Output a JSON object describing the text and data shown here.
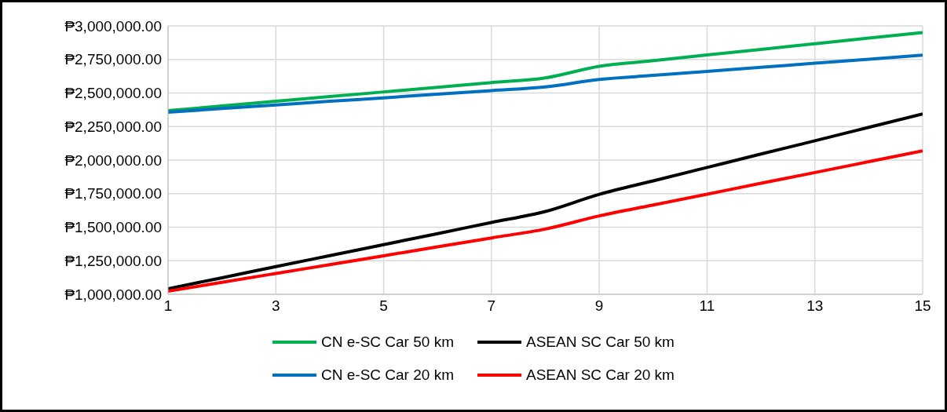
{
  "chart_data": {
    "type": "line",
    "x": [
      1,
      2,
      3,
      4,
      5,
      6,
      7,
      8,
      9,
      10,
      11,
      12,
      13,
      14,
      15
    ],
    "series": [
      {
        "name": "CN e-SC Car 50 km",
        "color": "#00b050",
        "values": [
          2368000,
          2403000,
          2438000,
          2473000,
          2508000,
          2543000,
          2578000,
          2613000,
          2699000,
          2741000,
          2783000,
          2825000,
          2867000,
          2909000,
          2951000
        ]
      },
      {
        "name": "ASEAN SC Car 50 km",
        "color": "#000000",
        "values": [
          1041000,
          1123000,
          1206000,
          1288000,
          1370000,
          1452000,
          1535000,
          1617000,
          1745000,
          1845000,
          1945000,
          2045000,
          2144000,
          2244000,
          2344000
        ]
      },
      {
        "name": "CN e-SC Car 20 km",
        "color": "#0070c0",
        "values": [
          2357000,
          2384000,
          2411000,
          2438000,
          2464000,
          2491000,
          2518000,
          2545000,
          2601000,
          2631000,
          2661000,
          2691000,
          2722000,
          2752000,
          2782000
        ]
      },
      {
        "name": "ASEAN SC Car 20 km",
        "color": "#ff0000",
        "values": [
          1023000,
          1089000,
          1155000,
          1221000,
          1287000,
          1354000,
          1420000,
          1486000,
          1584000,
          1665000,
          1746000,
          1827000,
          1907000,
          1988000,
          2069000
        ]
      }
    ],
    "xlim": [
      1,
      15
    ],
    "xticks": [
      1,
      3,
      5,
      7,
      9,
      11,
      13,
      15
    ],
    "ylim": [
      1000000,
      3000000
    ],
    "yticks": [
      {
        "value": 1000000,
        "label": "₱1,000,000.00"
      },
      {
        "value": 1250000,
        "label": "₱1,250,000.00"
      },
      {
        "value": 1500000,
        "label": "₱1,500,000.00"
      },
      {
        "value": 1750000,
        "label": "₱1,750,000.00"
      },
      {
        "value": 2000000,
        "label": "₱2,000,000.00"
      },
      {
        "value": 2250000,
        "label": "₱2,250,000.00"
      },
      {
        "value": 2500000,
        "label": "₱2,500,000.00"
      },
      {
        "value": 2750000,
        "label": "₱2,750,000.00"
      },
      {
        "value": 3000000,
        "label": "₱3,000,000.00"
      }
    ],
    "grid": true,
    "legend": "bottom",
    "marker": "none",
    "line_style": "solid"
  }
}
